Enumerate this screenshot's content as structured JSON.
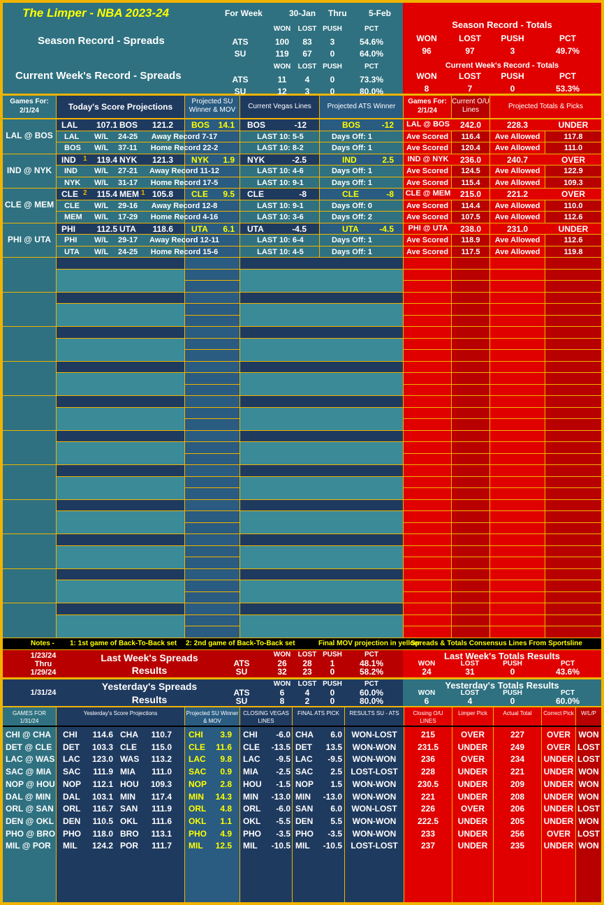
{
  "header": {
    "title": "The Limper - NBA 2023-24",
    "for_week": "For Week",
    "start": "30-Jan",
    "thru": "Thru",
    "end": "5-Feb"
  },
  "season_spreads": {
    "label": "Season Record - Spreads",
    "cols": [
      "WON",
      "LOST",
      "PUSH",
      "PCT"
    ],
    "rows": [
      [
        "ATS",
        "100",
        "83",
        "3",
        "54.6%"
      ],
      [
        "SU",
        "119",
        "67",
        "0",
        "64.0%"
      ]
    ]
  },
  "week_spreads": {
    "label": "Current Week's Record - Spreads",
    "cols": [
      "WON",
      "LOST",
      "PUSH",
      "PCT"
    ],
    "rows": [
      [
        "ATS",
        "11",
        "4",
        "0",
        "73.3%"
      ],
      [
        "SU",
        "12",
        "3",
        "0",
        "80.0%"
      ]
    ]
  },
  "season_totals": {
    "label": "Season Record - Totals",
    "cols": [
      "WON",
      "LOST",
      "PUSH",
      "PCT"
    ],
    "row": [
      "96",
      "97",
      "3",
      "49.7%"
    ]
  },
  "week_totals": {
    "label": "Current Week's Record - Totals",
    "cols": [
      "WON",
      "LOST",
      "PUSH",
      "PCT"
    ],
    "row": [
      "8",
      "7",
      "0",
      "53.3%"
    ]
  },
  "today_header": {
    "games_for": "Games For:",
    "date": "2/1/24",
    "proj": "Today's Score Projections",
    "su": "Projected SU Winner & MOV",
    "vegas": "Current Vegas Lines",
    "ats": "Projected ATS Winner",
    "games_for2": "Games For:",
    "date2": "2/1/24",
    "ou": "Current O/U Lines",
    "totals": "Projected Totals & Picks"
  },
  "games": [
    {
      "matchup": "LAL @ BOS",
      "away": "LAL",
      "away_b2b": "",
      "away_score": "107.1",
      "home": "BOS",
      "home_b2b": "",
      "home_score": "121.2",
      "su": "BOS",
      "mov": "14.1",
      "vegas_team": "BOS",
      "vegas_line": "-12",
      "ats_team": "BOS",
      "ats_line": "-12",
      "ou_match": "LAL @ BOS",
      "ou": "242.0",
      "proj_total": "228.3",
      "pick": "UNDER",
      "rows": [
        [
          "LAL",
          "W/L",
          "24-25",
          "Away Record 7-17",
          "LAST 10: 5-5",
          "Days Off: 1",
          "Ave Scored",
          "116.4",
          "Ave Allowed",
          "117.8"
        ],
        [
          "BOS",
          "W/L",
          "37-11",
          "Home Record 22-2",
          "LAST 10: 8-2",
          "Days Off: 1",
          "Ave Scored",
          "120.4",
          "Ave Allowed",
          "111.0"
        ]
      ]
    },
    {
      "matchup": "IND @ NYK",
      "away": "IND",
      "away_b2b": "1",
      "away_score": "119.4",
      "home": "NYK",
      "home_b2b": "",
      "home_score": "121.3",
      "su": "NYK",
      "mov": "1.9",
      "vegas_team": "NYK",
      "vegas_line": "-2.5",
      "ats_team": "IND",
      "ats_line": "2.5",
      "ou_match": "IND @ NYK",
      "ou": "236.0",
      "proj_total": "240.7",
      "pick": "OVER",
      "rows": [
        [
          "IND",
          "W/L",
          "27-21",
          "Away Record 11-12",
          "LAST 10: 4-6",
          "Days Off: 1",
          "Ave Scored",
          "124.5",
          "Ave Allowed",
          "122.9"
        ],
        [
          "NYK",
          "W/L",
          "31-17",
          "Home Record 17-5",
          "LAST 10: 9-1",
          "Days Off: 1",
          "Ave Scored",
          "115.4",
          "Ave Allowed",
          "109.3"
        ]
      ]
    },
    {
      "matchup": "CLE @ MEM",
      "away": "CLE",
      "away_b2b": "2",
      "away_score": "115.4",
      "home": "MEM",
      "home_b2b": "1",
      "home_score": "105.8",
      "su": "CLE",
      "mov": "9.5",
      "vegas_team": "CLE",
      "vegas_line": "-8",
      "ats_team": "CLE",
      "ats_line": "-8",
      "ou_match": "CLE @ MEM",
      "ou": "215.0",
      "proj_total": "221.2",
      "pick": "OVER",
      "rows": [
        [
          "CLE",
          "W/L",
          "29-16",
          "Away Record 12-8",
          "LAST 10: 9-1",
          "Days Off: 0",
          "Ave Scored",
          "114.4",
          "Ave Allowed",
          "110.0"
        ],
        [
          "MEM",
          "W/L",
          "17-29",
          "Home Record 4-16",
          "LAST 10: 3-6",
          "Days Off: 2",
          "Ave Scored",
          "107.5",
          "Ave Allowed",
          "112.6"
        ]
      ]
    },
    {
      "matchup": "PHI @ UTA",
      "away": "PHI",
      "away_b2b": "",
      "away_score": "112.5",
      "home": "UTA",
      "home_b2b": "",
      "home_score": "118.6",
      "su": "UTA",
      "mov": "6.1",
      "vegas_team": "UTA",
      "vegas_line": "-4.5",
      "ats_team": "UTA",
      "ats_line": "-4.5",
      "ou_match": "PHI @ UTA",
      "ou": "238.0",
      "proj_total": "231.0",
      "pick": "UNDER",
      "rows": [
        [
          "PHI",
          "W/L",
          "29-17",
          "Away Record 12-11",
          "LAST 10: 6-4",
          "Days Off: 1",
          "Ave Scored",
          "118.9",
          "Ave Allowed",
          "112.6"
        ],
        [
          "UTA",
          "W/L",
          "24-25",
          "Home Record 15-6",
          "LAST 10: 4-5",
          "Days Off: 1",
          "Ave Scored",
          "117.5",
          "Ave Allowed",
          "119.8"
        ]
      ]
    }
  ],
  "notes": [
    "Notes -",
    "1: 1st game of Back-To-Back set",
    "2: 2nd game of Back-To-Back set",
    "Final MOV projection in yellow",
    "Spreads & Totals Consensus Lines From Sportsline"
  ],
  "last_week": {
    "d1": "1/23/24",
    "thru": "Thru",
    "d2": "1/29/24",
    "title": "Last Week's Spreads",
    "results": "Results",
    "cols": [
      "WON",
      "LOST",
      "PUSH",
      "PCT"
    ],
    "rows": [
      [
        "ATS",
        "26",
        "28",
        "1",
        "48.1%"
      ],
      [
        "SU",
        "32",
        "23",
        "0",
        "58.2%"
      ]
    ],
    "totals_title": "Last Week's Totals Results",
    "totals_row": [
      "24",
      "31",
      "0",
      "43.6%"
    ]
  },
  "yesterday": {
    "date": "1/31/24",
    "title": "Yesterday's Spreads",
    "results": "Results",
    "cols": [
      "WON",
      "LOST",
      "PUSH",
      "PCT"
    ],
    "rows": [
      [
        "ATS",
        "6",
        "4",
        "0",
        "60.0%"
      ],
      [
        "SU",
        "8",
        "2",
        "0",
        "80.0%"
      ]
    ],
    "totals_title": "Yesterday's Totals Results",
    "totals_row": [
      "6",
      "4",
      "0",
      "60.0%"
    ]
  },
  "y_header": [
    "GAMES FOR 1/31/24",
    "Yesterday's Score Projections",
    "Projected SU Winner & MOV",
    "CLOSING VEGAS LINES",
    "FINAL ATS PICK",
    "RESULTS SU - ATS",
    "Closing O/U LINES",
    "Limper Pick",
    "Actual Total",
    "Correct Pick",
    "W/L/P"
  ],
  "y_games": [
    [
      "CHI @ CHA",
      "CHI",
      "114.6",
      "CHA",
      "110.7",
      "CHI",
      "3.9",
      "CHI",
      "-6.0",
      "CHA",
      "6.0",
      "WON-LOST",
      "215",
      "OVER",
      "227",
      "OVER",
      "WON"
    ],
    [
      "DET @ CLE",
      "DET",
      "103.3",
      "CLE",
      "115.0",
      "CLE",
      "11.6",
      "CLE",
      "-13.5",
      "DET",
      "13.5",
      "WON-WON",
      "231.5",
      "UNDER",
      "249",
      "OVER",
      "LOST"
    ],
    [
      "LAC @ WAS",
      "LAC",
      "123.0",
      "WAS",
      "113.2",
      "LAC",
      "9.8",
      "LAC",
      "-9.5",
      "LAC",
      "-9.5",
      "WON-WON",
      "236",
      "OVER",
      "234",
      "UNDER",
      "LOST"
    ],
    [
      "SAC @ MIA",
      "SAC",
      "111.9",
      "MIA",
      "111.0",
      "SAC",
      "0.9",
      "MIA",
      "-2.5",
      "SAC",
      "2.5",
      "LOST-LOST",
      "228",
      "UNDER",
      "221",
      "UNDER",
      "WON"
    ],
    [
      "NOP @ HOU",
      "NOP",
      "112.1",
      "HOU",
      "109.3",
      "NOP",
      "2.8",
      "HOU",
      "-1.5",
      "NOP",
      "1.5",
      "WON-WON",
      "230.5",
      "UNDER",
      "209",
      "UNDER",
      "WON"
    ],
    [
      "DAL @ MIN",
      "DAL",
      "103.1",
      "MIN",
      "117.4",
      "MIN",
      "14.3",
      "MIN",
      "-13.0",
      "MIN",
      "-13.0",
      "WON-WON",
      "221",
      "UNDER",
      "208",
      "UNDER",
      "WON"
    ],
    [
      "ORL @ SAN",
      "ORL",
      "116.7",
      "SAN",
      "111.9",
      "ORL",
      "4.8",
      "ORL",
      "-6.0",
      "SAN",
      "6.0",
      "WON-LOST",
      "226",
      "OVER",
      "206",
      "UNDER",
      "LOST"
    ],
    [
      "DEN @ OKL",
      "DEN",
      "110.5",
      "OKL",
      "111.6",
      "OKL",
      "1.1",
      "OKL",
      "-5.5",
      "DEN",
      "5.5",
      "WON-WON",
      "222.5",
      "UNDER",
      "205",
      "UNDER",
      "WON"
    ],
    [
      "PHO @ BRO",
      "PHO",
      "118.0",
      "BRO",
      "113.1",
      "PHO",
      "4.9",
      "PHO",
      "-3.5",
      "PHO",
      "-3.5",
      "WON-WON",
      "233",
      "UNDER",
      "256",
      "OVER",
      "LOST"
    ],
    [
      "MIL @ POR",
      "MIL",
      "124.2",
      "POR",
      "111.7",
      "MIL",
      "12.5",
      "MIL",
      "-10.5",
      "MIL",
      "-10.5",
      "LOST-LOST",
      "237",
      "UNDER",
      "235",
      "UNDER",
      "WON"
    ]
  ],
  "colors": {
    "gold": "#f0b400",
    "teal": "#2f7180",
    "navy": "#1f3a5f",
    "red": "#e00000",
    "yellow": "#ffff00"
  }
}
